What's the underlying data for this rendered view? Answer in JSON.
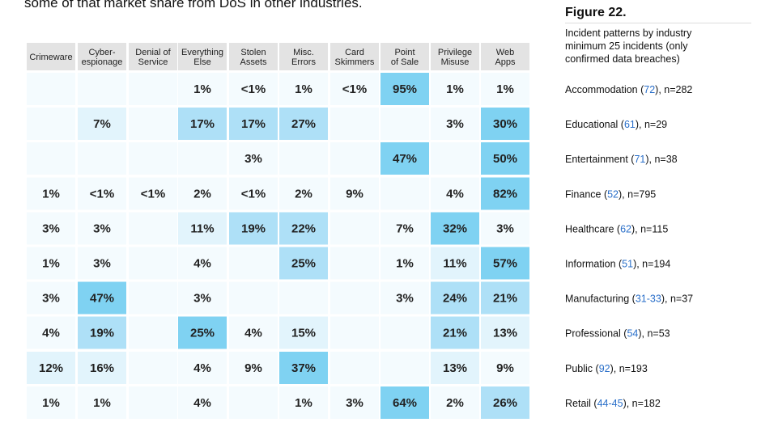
{
  "intro_text": "some of that market share from DoS in other industries.",
  "figure": {
    "title": "Figure 22.",
    "subtitle_lines": [
      "Incident patterns by industry",
      "minimum 25 incidents (only",
      "confirmed data breaches)"
    ]
  },
  "colors": {
    "header_bg": "#e3e3e3",
    "empty": "#f4fbfe",
    "low": "#e2f4fc",
    "mid": "#aee0f7",
    "high": "#7fd2f2",
    "link": "#2a6fc9"
  },
  "chart_data": {
    "type": "heatmap",
    "title": "Figure 22. Incident patterns by industry minimum 25 incidents (only confirmed data breaches)",
    "columns": [
      [
        "Crimeware"
      ],
      [
        "Cyber-",
        "espionage"
      ],
      [
        "Denial of",
        "Service"
      ],
      [
        "Everything",
        "Else"
      ],
      [
        "Stolen",
        "Assets"
      ],
      [
        "Misc.",
        "Errors"
      ],
      [
        "Card",
        "Skimmers"
      ],
      [
        "Point",
        "of Sale"
      ],
      [
        "Privilege",
        "Misuse"
      ],
      [
        "Web",
        "Apps"
      ]
    ],
    "rows": [
      {
        "industry": "Accommodation",
        "naics": "72",
        "n": "n=282",
        "cells": [
          "",
          "",
          "",
          "1%",
          "<1%",
          "1%",
          "<1%",
          "95%",
          "1%",
          "1%"
        ],
        "levels": [
          0,
          0,
          0,
          0,
          0,
          0,
          0,
          3,
          0,
          0
        ]
      },
      {
        "industry": "Educational",
        "naics": "61",
        "n": "n=29",
        "cells": [
          "",
          "7%",
          "",
          "17%",
          "17%",
          "27%",
          "",
          "",
          "3%",
          "30%"
        ],
        "levels": [
          0,
          1,
          0,
          2,
          2,
          2,
          0,
          0,
          0,
          3
        ]
      },
      {
        "industry": "Entertainment",
        "naics": "71",
        "n": "n=38",
        "cells": [
          "",
          "",
          "",
          "",
          "3%",
          "",
          "",
          "47%",
          "",
          "50%"
        ],
        "levels": [
          0,
          0,
          0,
          0,
          0,
          0,
          0,
          3,
          0,
          3
        ]
      },
      {
        "industry": "Finance",
        "naics": "52",
        "n": "n=795",
        "cells": [
          "1%",
          "<1%",
          "<1%",
          "2%",
          "<1%",
          "2%",
          "9%",
          "",
          "4%",
          "82%"
        ],
        "levels": [
          0,
          0,
          0,
          0,
          0,
          0,
          0,
          0,
          0,
          3
        ]
      },
      {
        "industry": "Healthcare",
        "naics": "62",
        "n": "n=115",
        "cells": [
          "3%",
          "3%",
          "",
          "11%",
          "19%",
          "22%",
          "",
          "7%",
          "32%",
          "3%"
        ],
        "levels": [
          0,
          0,
          0,
          1,
          2,
          2,
          0,
          0,
          3,
          0
        ]
      },
      {
        "industry": "Information",
        "naics": "51",
        "n": "n=194",
        "cells": [
          "1%",
          "3%",
          "",
          "4%",
          "",
          "25%",
          "",
          "1%",
          "11%",
          "57%"
        ],
        "levels": [
          0,
          0,
          0,
          0,
          0,
          2,
          0,
          0,
          1,
          3
        ]
      },
      {
        "industry": "Manufacturing",
        "naics": "31-33",
        "n": "n=37",
        "cells": [
          "3%",
          "47%",
          "",
          "3%",
          "",
          "",
          "",
          "3%",
          "24%",
          "21%"
        ],
        "levels": [
          0,
          3,
          0,
          0,
          0,
          0,
          0,
          0,
          2,
          2
        ]
      },
      {
        "industry": "Professional",
        "naics": "54",
        "n": "n=53",
        "cells": [
          "4%",
          "19%",
          "",
          "25%",
          "4%",
          "15%",
          "",
          "",
          "21%",
          "13%"
        ],
        "levels": [
          0,
          2,
          0,
          3,
          0,
          1,
          0,
          0,
          2,
          1
        ]
      },
      {
        "industry": "Public",
        "naics": "92",
        "n": "n=193",
        "cells": [
          "12%",
          "16%",
          "",
          "4%",
          "9%",
          "37%",
          "",
          "",
          "13%",
          "9%"
        ],
        "levels": [
          1,
          1,
          0,
          0,
          0,
          3,
          0,
          0,
          1,
          0
        ]
      },
      {
        "industry": "Retail",
        "naics": "44-45",
        "n": "n=182",
        "cells": [
          "1%",
          "1%",
          "",
          "4%",
          "",
          "1%",
          "3%",
          "64%",
          "2%",
          "26%"
        ],
        "levels": [
          0,
          0,
          0,
          0,
          0,
          0,
          0,
          3,
          0,
          2
        ]
      }
    ]
  }
}
